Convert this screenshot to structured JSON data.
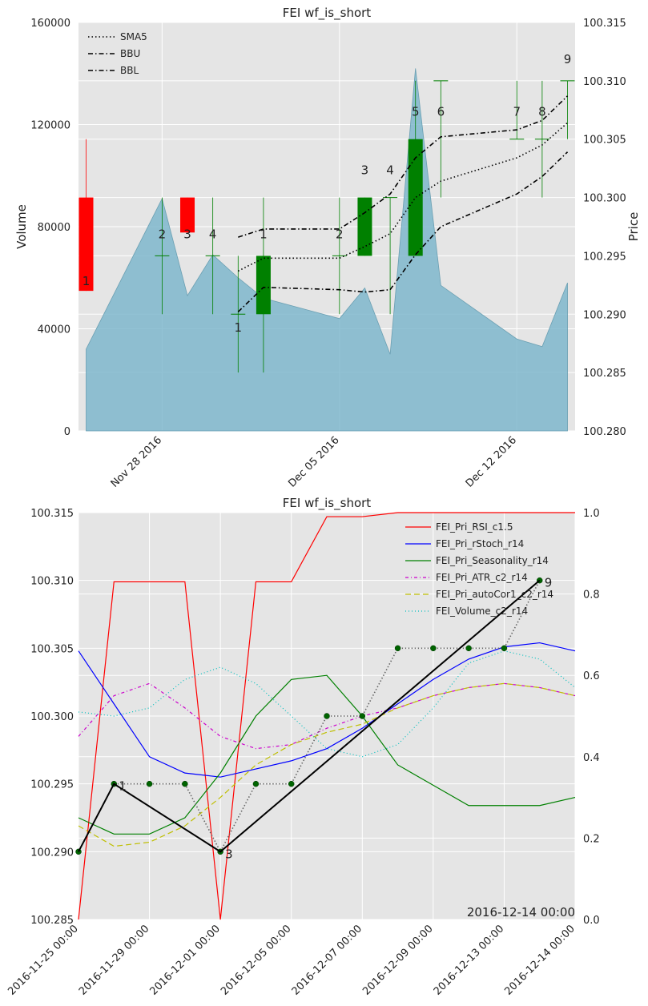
{
  "chart_data": [
    {
      "type": "candlestick",
      "title": "FEI wf_is_short",
      "ylabel_left": "Volume",
      "ylabel_right": "Price",
      "ylim_left": [
        0,
        160000
      ],
      "ylim_right": [
        100.28,
        100.315
      ],
      "yticks_left": [
        "0",
        "40000",
        "80000",
        "120000",
        "160000"
      ],
      "yticks_right": [
        "100.280",
        "100.285",
        "100.290",
        "100.295",
        "100.300",
        "100.305",
        "100.310",
        "100.315"
      ],
      "xticks": [
        {
          "label": "Nov 28 2016",
          "x": 3
        },
        {
          "label": "Dec 05 2016",
          "x": 10
        },
        {
          "label": "Dec 12 2016",
          "x": 17
        }
      ],
      "xlim": [
        -0.3,
        19.3
      ],
      "grid": true,
      "legend_position": "top-left",
      "legend": [
        {
          "name": "SMA5",
          "style": "dotted"
        },
        {
          "name": "BBU",
          "style": "dashdot"
        },
        {
          "name": "BBL",
          "style": "dashdot"
        }
      ],
      "volume": [
        {
          "x": 0,
          "v": 32000
        },
        {
          "x": 3,
          "v": 91000
        },
        {
          "x": 4,
          "v": 53000
        },
        {
          "x": 5,
          "v": 69000
        },
        {
          "x": 6,
          "v": 60000
        },
        {
          "x": 7,
          "v": 52000
        },
        {
          "x": 10,
          "v": 44000
        },
        {
          "x": 11,
          "v": 56000
        },
        {
          "x": 12,
          "v": 30000
        },
        {
          "x": 13,
          "v": 142000
        },
        {
          "x": 14,
          "v": 57000
        },
        {
          "x": 17,
          "v": 36000
        },
        {
          "x": 18,
          "v": 33000
        },
        {
          "x": 19,
          "v": 58000
        }
      ],
      "candles": [
        {
          "x": 0,
          "open": 100.3,
          "close": 100.292,
          "high": 100.305,
          "low": 100.292,
          "color": "#ff0000"
        },
        {
          "x": 3,
          "open": 100.295,
          "close": 100.295,
          "high": 100.3,
          "low": 100.29,
          "color": "#008000"
        },
        {
          "x": 4,
          "open": 100.3,
          "close": 100.297,
          "high": 100.3,
          "low": 100.297,
          "color": "#ff0000"
        },
        {
          "x": 5,
          "open": 100.295,
          "close": 100.295,
          "high": 100.3,
          "low": 100.29,
          "color": "#008000"
        },
        {
          "x": 6,
          "open": 100.29,
          "close": 100.29,
          "high": 100.295,
          "low": 100.285,
          "color": "#008000"
        },
        {
          "x": 7,
          "open": 100.29,
          "close": 100.295,
          "high": 100.3,
          "low": 100.285,
          "color": "#008000"
        },
        {
          "x": 10,
          "open": 100.295,
          "close": 100.295,
          "high": 100.3,
          "low": 100.29,
          "color": "#008000"
        },
        {
          "x": 11,
          "open": 100.295,
          "close": 100.3,
          "high": 100.3,
          "low": 100.295,
          "color": "#008000"
        },
        {
          "x": 12,
          "open": 100.3,
          "close": 100.3,
          "high": 100.3,
          "low": 100.29,
          "color": "#008000"
        },
        {
          "x": 13,
          "open": 100.295,
          "close": 100.305,
          "high": 100.31,
          "low": 100.295,
          "color": "#008000"
        },
        {
          "x": 14,
          "open": 100.31,
          "close": 100.31,
          "high": 100.31,
          "low": 100.3,
          "color": "#008000"
        },
        {
          "x": 17,
          "open": 100.305,
          "close": 100.305,
          "high": 100.31,
          "low": 100.305,
          "color": "#008000"
        },
        {
          "x": 18,
          "open": 100.305,
          "close": 100.305,
          "high": 100.31,
          "low": 100.3,
          "color": "#008000"
        },
        {
          "x": 19,
          "open": 100.31,
          "close": 100.31,
          "high": 100.31,
          "low": 100.305,
          "color": "#008000"
        }
      ],
      "sma5": [
        {
          "x": 6,
          "y": 100.2937
        },
        {
          "x": 7,
          "y": 100.2948
        },
        {
          "x": 10,
          "y": 100.2948
        },
        {
          "x": 11,
          "y": 100.2958
        },
        {
          "x": 12,
          "y": 100.2969
        },
        {
          "x": 13,
          "y": 100.3
        },
        {
          "x": 14,
          "y": 100.3014
        },
        {
          "x": 17,
          "y": 100.3034
        },
        {
          "x": 18,
          "y": 100.3045
        },
        {
          "x": 19,
          "y": 100.3064
        }
      ],
      "bbu": [
        {
          "x": 6,
          "y": 100.2966
        },
        {
          "x": 7,
          "y": 100.2973
        },
        {
          "x": 10,
          "y": 100.2973
        },
        {
          "x": 11,
          "y": 100.2987
        },
        {
          "x": 12,
          "y": 100.3003
        },
        {
          "x": 13,
          "y": 100.3034
        },
        {
          "x": 14,
          "y": 100.3052
        },
        {
          "x": 17,
          "y": 100.3058
        },
        {
          "x": 18,
          "y": 100.3066
        },
        {
          "x": 19,
          "y": 100.3087
        }
      ],
      "bbl": [
        {
          "x": 6,
          "y": 100.2902
        },
        {
          "x": 7,
          "y": 100.2923
        },
        {
          "x": 10,
          "y": 100.2921
        },
        {
          "x": 11,
          "y": 100.2919
        },
        {
          "x": 12,
          "y": 100.2921
        },
        {
          "x": 13,
          "y": 100.2951
        },
        {
          "x": 14,
          "y": 100.2975
        },
        {
          "x": 17,
          "y": 100.3003
        },
        {
          "x": 18,
          "y": 100.3018
        },
        {
          "x": 19,
          "y": 100.3039
        }
      ],
      "labels": [
        {
          "x": 0,
          "y": 100.2925,
          "text": "1"
        },
        {
          "x": 3,
          "y": 100.2965,
          "text": "2"
        },
        {
          "x": 4,
          "y": 100.2965,
          "text": "3"
        },
        {
          "x": 5,
          "y": 100.2965,
          "text": "4"
        },
        {
          "x": 6,
          "y": 100.2885,
          "text": "1"
        },
        {
          "x": 7,
          "y": 100.2965,
          "text": "1"
        },
        {
          "x": 10,
          "y": 100.2965,
          "text": "2"
        },
        {
          "x": 11,
          "y": 100.302,
          "text": "3"
        },
        {
          "x": 12,
          "y": 100.302,
          "text": "4"
        },
        {
          "x": 13,
          "y": 100.307,
          "text": "5"
        },
        {
          "x": 14,
          "y": 100.307,
          "text": "6"
        },
        {
          "x": 17,
          "y": 100.307,
          "text": "7"
        },
        {
          "x": 18,
          "y": 100.307,
          "text": "8"
        },
        {
          "x": 19,
          "y": 100.3115,
          "text": "9"
        }
      ]
    },
    {
      "type": "line",
      "title": "FEI wf_is_short",
      "ylim_left": [
        100.285,
        100.315
      ],
      "ylim_right": [
        0.0,
        1.0
      ],
      "yticks_left": [
        "100.285",
        "100.290",
        "100.295",
        "100.300",
        "100.305",
        "100.310",
        "100.315"
      ],
      "yticks_right": [
        "0.0",
        "0.2",
        "0.4",
        "0.6",
        "0.8",
        "1.0"
      ],
      "xticks": [
        "2016-11-25 00:00",
        "2016-11-29 00:00",
        "2016-12-01 00:00",
        "2016-12-05 00:00",
        "2016-12-07 00:00",
        "2016-12-09 00:00",
        "2016-12-13 00:00",
        "2016-12-14 00:00"
      ],
      "xlim": [
        0,
        14
      ],
      "grid": true,
      "legend_position": "top-right",
      "corner_label": "2016-12-14 00:00",
      "x": [
        0,
        1,
        2,
        3,
        4,
        5,
        6,
        7,
        8,
        9,
        10,
        11,
        12,
        13,
        14
      ],
      "series": [
        {
          "name": "FEI_Pri_RSI_c1.5",
          "axis": "right",
          "color": "#ff0000",
          "dash": "",
          "values": [
            0.0,
            0.83,
            0.83,
            0.83,
            0.0,
            0.83,
            0.83,
            0.99,
            0.99,
            1.0,
            1.0,
            1.0,
            1.0,
            1.0,
            1.0
          ]
        },
        {
          "name": "FEI_Pri_rStoch_r14",
          "axis": "right",
          "color": "#0000ff",
          "dash": "",
          "values": [
            0.66,
            0.53,
            0.4,
            0.36,
            0.35,
            0.37,
            0.39,
            0.42,
            0.47,
            0.53,
            0.59,
            0.64,
            0.67,
            0.68,
            0.66
          ]
        },
        {
          "name": "FEI_Pri_Seasonality_r14",
          "axis": "right",
          "color": "#008000",
          "dash": "",
          "values": [
            0.25,
            0.21,
            0.21,
            0.25,
            0.36,
            0.5,
            0.59,
            0.6,
            0.5,
            0.38,
            0.33,
            0.28,
            0.28,
            0.28,
            0.3
          ]
        },
        {
          "name": "FEI_Pri_ATR_c2_r14",
          "axis": "right",
          "color": "#cc00cc",
          "dash": "4,3,1,3",
          "values": [
            0.45,
            0.55,
            0.58,
            0.52,
            0.45,
            0.42,
            0.43,
            0.47,
            0.5,
            0.52,
            0.55,
            0.57,
            0.58,
            0.57,
            0.55
          ]
        },
        {
          "name": "FEI_Pri_autoCor1_c2_r14",
          "axis": "right",
          "color": "#bfbf00",
          "dash": "7,4",
          "values": [
            0.23,
            0.18,
            0.19,
            0.23,
            0.3,
            0.38,
            0.43,
            0.46,
            0.48,
            0.52,
            0.55,
            0.57,
            0.58,
            0.57,
            0.55
          ]
        },
        {
          "name": "FEI_Volume_c2_r14",
          "axis": "right",
          "color": "#00bfbf",
          "dash": "1,3",
          "values": [
            0.51,
            0.5,
            0.52,
            0.59,
            0.62,
            0.58,
            0.5,
            0.42,
            0.4,
            0.43,
            0.52,
            0.63,
            0.66,
            0.64,
            0.57
          ]
        }
      ],
      "price_dots": [
        {
          "x": 0,
          "y": 100.29
        },
        {
          "x": 1,
          "y": 100.295
        },
        {
          "x": 2,
          "y": 100.295
        },
        {
          "x": 3,
          "y": 100.295
        },
        {
          "x": 4,
          "y": 100.29
        },
        {
          "x": 5,
          "y": 100.295
        },
        {
          "x": 6,
          "y": 100.295
        },
        {
          "x": 7,
          "y": 100.3
        },
        {
          "x": 8,
          "y": 100.3
        },
        {
          "x": 9,
          "y": 100.305
        },
        {
          "x": 10,
          "y": 100.305
        },
        {
          "x": 11,
          "y": 100.305
        },
        {
          "x": 12,
          "y": 100.305
        },
        {
          "x": 13,
          "y": 100.31
        }
      ],
      "wave": [
        {
          "x": 0,
          "y": 100.29
        },
        {
          "x": 1,
          "y": 100.295
        },
        {
          "x": 4,
          "y": 100.29
        },
        {
          "x": 13,
          "y": 100.31
        }
      ],
      "wave_labels": [
        {
          "x": 1,
          "y": 100.295,
          "text": "1"
        },
        {
          "x": 4,
          "y": 100.29,
          "text": "3"
        },
        {
          "x": 13,
          "y": 100.31,
          "text": "9"
        }
      ]
    }
  ]
}
